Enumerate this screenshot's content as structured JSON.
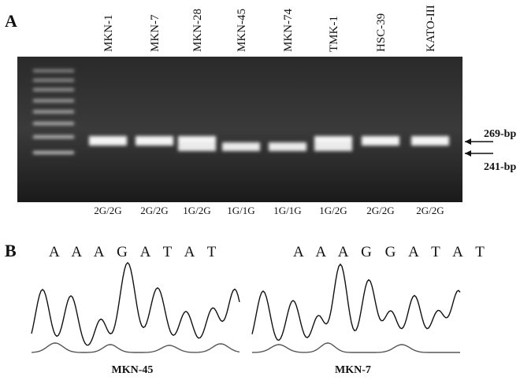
{
  "panel_a": {
    "label": "A",
    "lanes": [
      "MKN-1",
      "MKN-7",
      "MKN-28",
      "MKN-45",
      "MKN-74",
      "TMK-1",
      "HSC-39",
      "KATO-III"
    ],
    "genotypes": [
      "2G/2G",
      "2G/2G",
      "1G/2G",
      "1G/1G",
      "1G/1G",
      "1G/2G",
      "2G/2G",
      "2G/2G"
    ],
    "markers": [
      "269-bp",
      "241-bp"
    ]
  },
  "panel_b": {
    "label": "B",
    "sequences": [
      "A A A G A T A T",
      "A A A G G A T A T"
    ],
    "samples": [
      "MKN-45",
      "MKN-7"
    ]
  }
}
